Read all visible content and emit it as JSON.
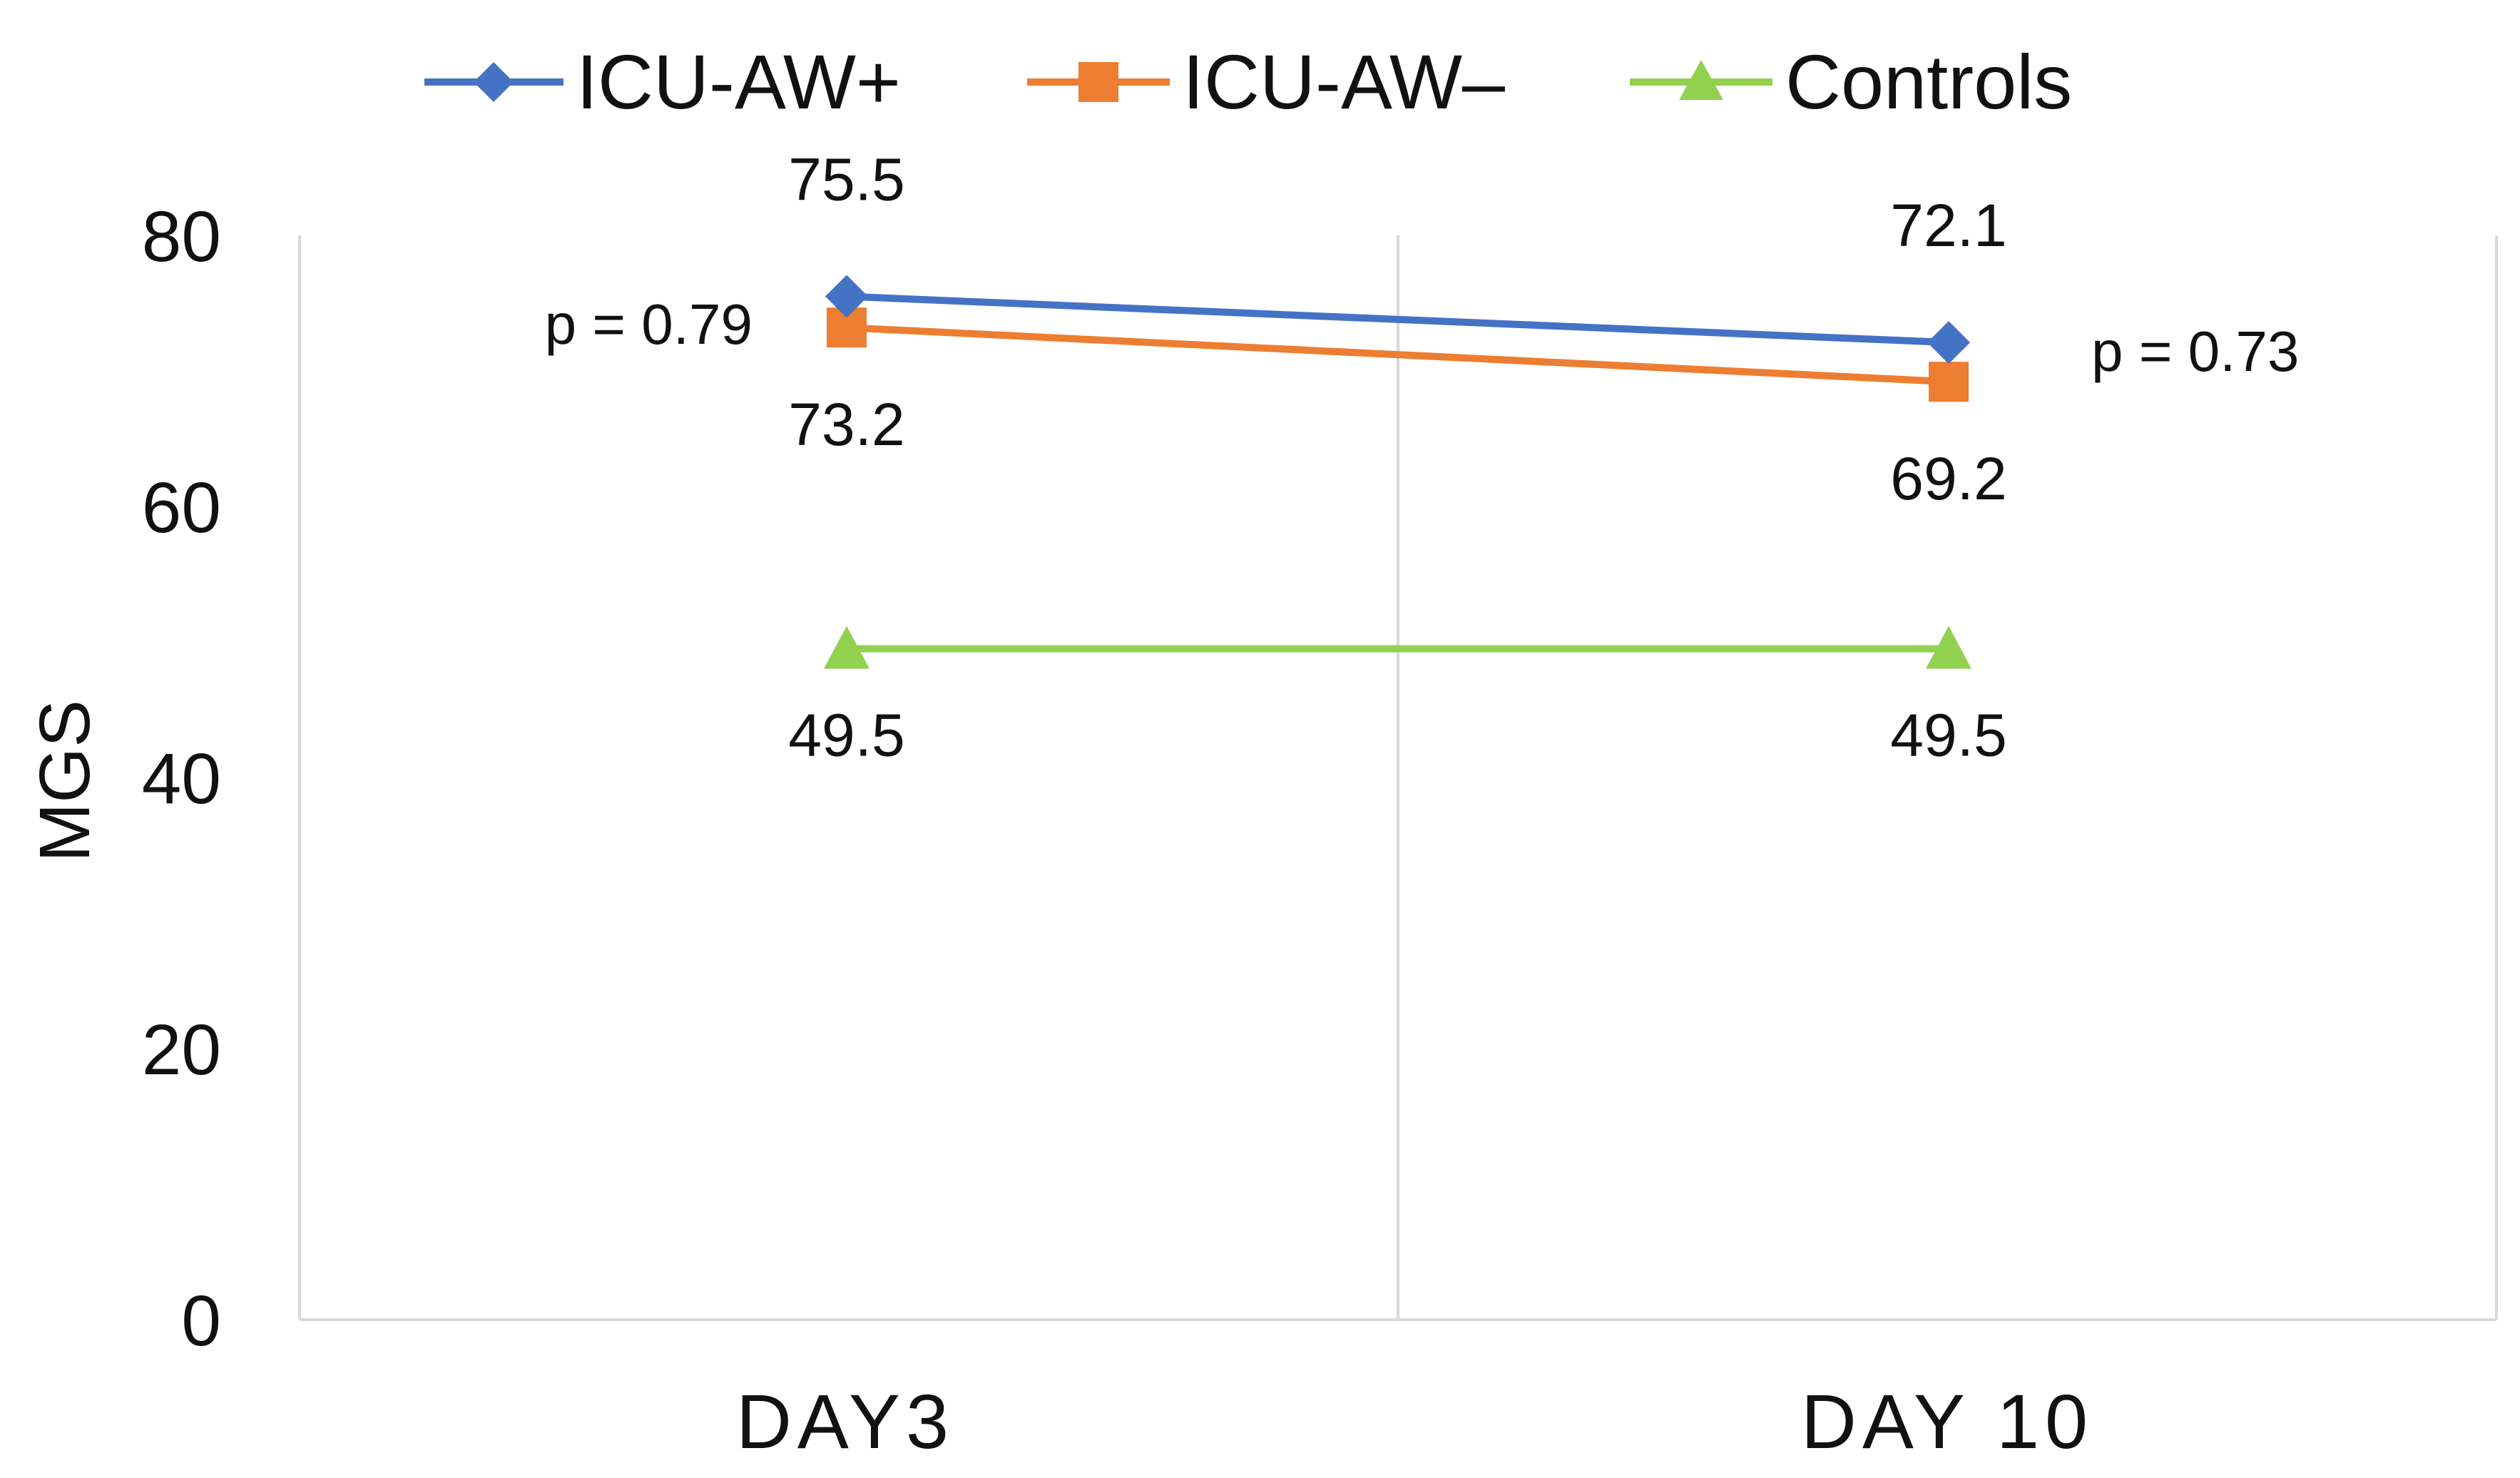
{
  "chart_data": {
    "type": "line",
    "title": "",
    "xlabel": "",
    "ylabel": "MGS",
    "ylim": [
      0,
      80
    ],
    "yticks": [
      0,
      20,
      40,
      60,
      80
    ],
    "grid": "vertical gridline between categories",
    "legend_position": "top",
    "categories": [
      "DAY3",
      "DAY 10"
    ],
    "series": [
      {
        "name": "ICU-AW+",
        "marker": "diamond",
        "color": "#4472C4",
        "values": [
          75.5,
          72.1
        ],
        "labels": [
          "75.5",
          "72.1"
        ]
      },
      {
        "name": "ICU-AW–",
        "marker": "square",
        "color": "#ED7D31",
        "values": [
          73.2,
          69.2
        ],
        "labels": [
          "73.2",
          "69.2"
        ]
      },
      {
        "name": "Controls",
        "marker": "triangle",
        "color": "#92D050",
        "values": [
          49.5,
          49.5
        ],
        "labels": [
          "49.5",
          "49.5"
        ]
      }
    ],
    "annotations": [
      "p = 0.79",
      "p = 0.73"
    ]
  }
}
